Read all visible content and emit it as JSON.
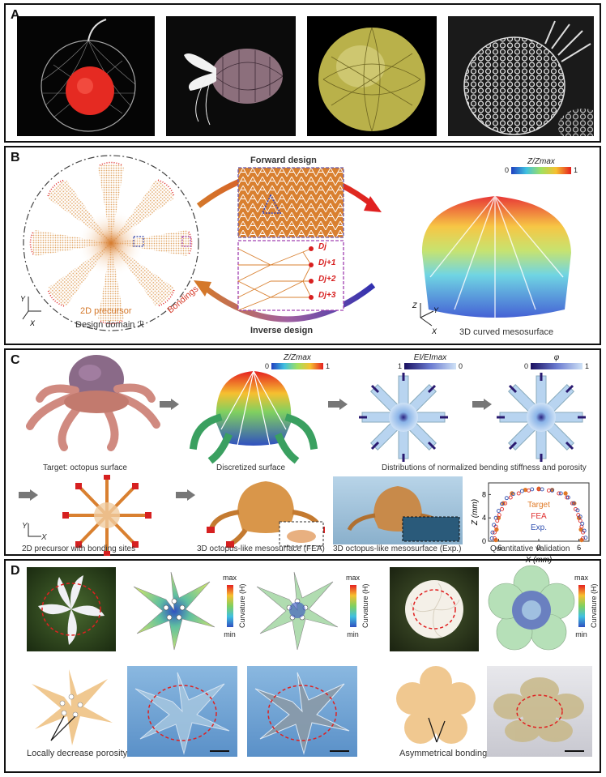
{
  "panelA": {
    "label": "A"
  },
  "panelB": {
    "label": "B",
    "forward": "Forward design",
    "inverse": "Inverse design",
    "bondings": "Bondings",
    "precursor": "2D precursor",
    "domain": "Design domain ℛ",
    "mesosurface": "3D curved mesosurface",
    "colorbar": {
      "title": "Z/Zmax",
      "min": "0",
      "max": "1"
    },
    "d_labels": [
      "Dj",
      "Dj+1",
      "Dj+2",
      "Dj+3"
    ]
  },
  "panelC": {
    "label": "C",
    "cap_target": "Target: octopus surface",
    "cap_discretized": "Discretized surface",
    "cap_distributions": "Distributions of normalized bending stiffness and porosity",
    "cap_precursor": "2D precursor with bonding sites",
    "cap_fea": "3D octopus-like mesosurface (FEA)",
    "cap_exp": "3D octopus-like mesosurface (Exp.)",
    "cap_quant": "Quantitative validation",
    "cb1": {
      "title": "Z/Zmax",
      "min": "0",
      "max": "1"
    },
    "cb2": {
      "title": "EI/EImax",
      "left": "1",
      "right": "0"
    },
    "cb3": {
      "title": "φ",
      "left": "0",
      "right": "1"
    }
  },
  "chart_data": {
    "type": "scatter",
    "xlabel": "X (mm)",
    "ylabel": "Z (mm)",
    "xlim": [
      -7.5,
      7.5
    ],
    "ylim": [
      0,
      10
    ],
    "xticks": [
      "-6",
      "0",
      "6"
    ],
    "yticks": [
      "0",
      "4",
      "8"
    ],
    "legend_position": "center",
    "series": [
      {
        "name": "Target",
        "color": "#e07b28",
        "x": [
          -6.4,
          -6.3,
          -6.0,
          -5.3,
          -4.0,
          -2.0,
          0,
          2.0,
          4.0,
          5.3,
          6.0,
          6.3,
          6.4
        ],
        "y": [
          0.2,
          2,
          4,
          6.5,
          8.2,
          8.8,
          9,
          8.8,
          8.2,
          6.5,
          4,
          2,
          0.2
        ]
      },
      {
        "name": "FEA",
        "color": "#e03030",
        "x": [
          -6.6,
          -6.6,
          -6.4,
          -6.2,
          -5.9,
          -5.5,
          -5.0,
          -4.2,
          -3.0,
          -1.5,
          0,
          1.5,
          3.0,
          4.2,
          5.0,
          5.5,
          5.9,
          6.2,
          6.4,
          6.6,
          6.6
        ],
        "y": [
          0.5,
          1.5,
          2.5,
          3.5,
          4.5,
          5.5,
          6.5,
          7.5,
          8.2,
          8.7,
          8.9,
          8.7,
          8.2,
          7.5,
          6.5,
          5.5,
          4.5,
          3.5,
          2.5,
          1.5,
          0.5
        ]
      },
      {
        "name": "Exp.",
        "color": "#3050b0",
        "x": [
          -7.0,
          -6.9,
          -6.7,
          -6.4,
          -6.0,
          -5.5,
          -4.8,
          -3.8,
          -2.5,
          -1.0,
          0.5,
          2.0,
          3.3,
          4.4,
          5.2,
          5.8,
          6.2,
          6.5,
          6.8,
          7.0
        ],
        "y": [
          0.5,
          1.5,
          2.8,
          4.0,
          5.2,
          6.4,
          7.4,
          8.1,
          8.6,
          8.9,
          8.9,
          8.7,
          8.2,
          7.5,
          6.5,
          5.3,
          4.2,
          3.0,
          1.8,
          0.6
        ]
      }
    ]
  },
  "panelD": {
    "label": "D",
    "curv_max": "max",
    "curv_min": "min",
    "curv_title": "Curvature (H)",
    "cap_porosity": "Locally decrease porosity",
    "cap_bondings": "Asymmetrical bondings"
  }
}
